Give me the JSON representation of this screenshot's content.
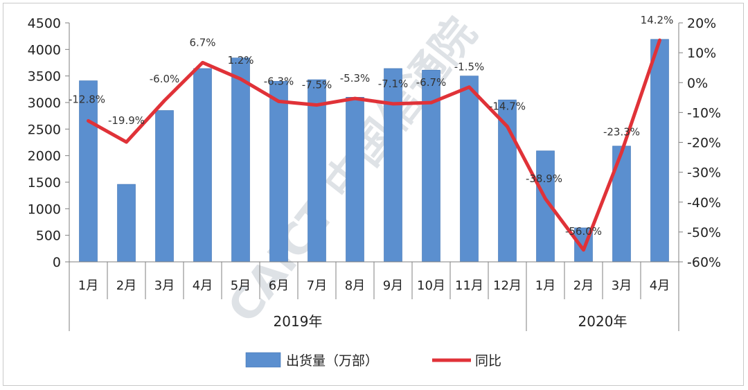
{
  "chart_data": {
    "type": "bar",
    "categories": [
      "1月",
      "2月",
      "3月",
      "4月",
      "5月",
      "6月",
      "7月",
      "8月",
      "9月",
      "10月",
      "11月",
      "12月",
      "1月",
      "2月",
      "3月",
      "4月"
    ],
    "groups": [
      {
        "label": "2019年",
        "start": 0,
        "end": 11
      },
      {
        "label": "2020年",
        "start": 12,
        "end": 15
      }
    ],
    "series": [
      {
        "name": "出货量（万部）",
        "type": "bar",
        "axis": "left",
        "values": [
          3410,
          1460,
          2850,
          3640,
          3840,
          3400,
          3430,
          3100,
          3640,
          3610,
          3500,
          3050,
          2090,
          640,
          2180,
          4190
        ]
      },
      {
        "name": "同比",
        "type": "line",
        "axis": "right",
        "values": [
          -12.8,
          -19.9,
          -6.0,
          6.7,
          1.2,
          -6.3,
          -7.5,
          -5.3,
          -7.1,
          -6.7,
          -1.5,
          -14.7,
          -38.9,
          -56.0,
          -23.3,
          14.2
        ],
        "labels": [
          "-12.8%",
          "-19.9%",
          "-6.0%",
          "6.7%",
          "1.2%",
          "-6.3%",
          "-7.5%",
          "-5.3%",
          "-7.1%",
          "-6.7%",
          "-1.5%",
          "-14.7%",
          "-38.9%",
          "-56.0%",
          "-23.3%",
          "14.2%"
        ]
      }
    ],
    "y_left": {
      "min": 0,
      "max": 4500,
      "ticks": [
        "0",
        "500",
        "1000",
        "1500",
        "2000",
        "2500",
        "3000",
        "3500",
        "4000",
        "4500"
      ]
    },
    "y_right": {
      "min": -60,
      "max": 20,
      "ticks": [
        "-60%",
        "-50%",
        "-40%",
        "-30%",
        "-20%",
        "-10%",
        "0%",
        "10%",
        "20%"
      ]
    },
    "legend": {
      "placement": "bottom"
    },
    "colors": {
      "bar": "#5b8fcf",
      "bar_edge": "#3f73b4",
      "line": "#e03238"
    },
    "grid": false
  },
  "watermark": {
    "text": "CAICT 中国信通院"
  }
}
